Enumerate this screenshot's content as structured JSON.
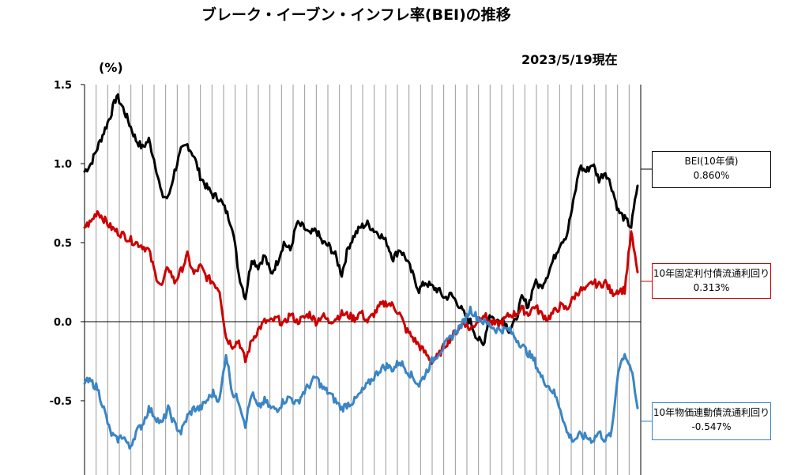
{
  "chart_data": {
    "type": "line",
    "title": "ブレーク・イーブン・インフレ率(BEI)の推移",
    "date_note": "2023/5/19現在",
    "ylabel": "(%)",
    "ylim": [
      -0.95,
      1.5
    ],
    "yticks": [
      1.5,
      1.0,
      0.5,
      0.0,
      -0.5
    ],
    "ytick_labels": [
      "1.5",
      "1.0",
      "0.5",
      "0.0",
      "-0.5"
    ],
    "grid": "vertical",
    "legend_placement": "right",
    "series": [
      {
        "name": "BEI(10年債)",
        "latest_label": "0.860%",
        "color": "#000000",
        "values": [
          0.95,
          1.0,
          1.1,
          1.2,
          1.3,
          1.43,
          1.35,
          1.25,
          1.15,
          1.1,
          1.15,
          1.0,
          0.8,
          0.78,
          0.95,
          1.08,
          1.12,
          1.05,
          0.92,
          0.85,
          0.8,
          0.78,
          0.7,
          0.6,
          0.3,
          0.15,
          0.4,
          0.35,
          0.42,
          0.3,
          0.38,
          0.5,
          0.45,
          0.62,
          0.6,
          0.55,
          0.58,
          0.5,
          0.48,
          0.42,
          0.3,
          0.47,
          0.55,
          0.6,
          0.62,
          0.58,
          0.55,
          0.5,
          0.4,
          0.46,
          0.4,
          0.3,
          0.2,
          0.25,
          0.22,
          0.2,
          0.15,
          0.17,
          0.12,
          0.05,
          0.0,
          -0.1,
          -0.15,
          0.05,
          0.0,
          0.02,
          -0.05,
          0.0,
          0.15,
          0.1,
          0.25,
          0.22,
          0.3,
          0.4,
          0.5,
          0.55,
          0.75,
          0.98,
          0.95,
          1.0,
          0.9,
          0.95,
          0.85,
          0.7,
          0.65,
          0.6,
          0.86
        ]
      },
      {
        "name": "10年固定利付債流通利回り",
        "latest_label": "0.313%",
        "color": "#cc0000",
        "values": [
          0.6,
          0.63,
          0.7,
          0.65,
          0.6,
          0.57,
          0.55,
          0.52,
          0.5,
          0.48,
          0.45,
          0.3,
          0.22,
          0.35,
          0.25,
          0.32,
          0.42,
          0.3,
          0.35,
          0.28,
          0.25,
          0.2,
          -0.1,
          -0.15,
          -0.12,
          -0.25,
          -0.12,
          -0.05,
          0.0,
          0.0,
          0.02,
          -0.02,
          0.05,
          0.0,
          0.02,
          0.05,
          0.0,
          0.04,
          0.0,
          0.02,
          0.05,
          0.04,
          0.02,
          0.06,
          0.0,
          0.05,
          0.1,
          0.12,
          0.1,
          0.05,
          -0.05,
          -0.1,
          -0.15,
          -0.2,
          -0.25,
          -0.22,
          -0.15,
          -0.1,
          -0.05,
          0.0,
          -0.05,
          0.0,
          0.05,
          0.0,
          -0.02,
          0.0,
          0.04,
          0.05,
          0.08,
          0.05,
          0.1,
          0.05,
          0.02,
          0.06,
          0.1,
          0.08,
          0.15,
          0.2,
          0.2,
          0.25,
          0.23,
          0.25,
          0.18,
          0.2,
          0.2,
          0.56,
          0.313
        ]
      },
      {
        "name": "10年物価連動債流通利回り",
        "latest_label": "-0.547%",
        "color": "#3a85c5",
        "values": [
          -0.38,
          -0.38,
          -0.42,
          -0.55,
          -0.7,
          -0.75,
          -0.72,
          -0.8,
          -0.7,
          -0.65,
          -0.55,
          -0.6,
          -0.65,
          -0.55,
          -0.65,
          -0.7,
          -0.6,
          -0.55,
          -0.55,
          -0.5,
          -0.45,
          -0.5,
          -0.2,
          -0.45,
          -0.5,
          -0.65,
          -0.45,
          -0.55,
          -0.5,
          -0.55,
          -0.55,
          -0.5,
          -0.48,
          -0.52,
          -0.45,
          -0.4,
          -0.35,
          -0.42,
          -0.45,
          -0.5,
          -0.55,
          -0.52,
          -0.5,
          -0.45,
          -0.4,
          -0.35,
          -0.3,
          -0.28,
          -0.3,
          -0.25,
          -0.3,
          -0.35,
          -0.4,
          -0.33,
          -0.25,
          -0.2,
          -0.15,
          -0.1,
          -0.05,
          0.0,
          0.08,
          0.03,
          0.0,
          -0.02,
          -0.05,
          -0.05,
          -0.05,
          -0.1,
          -0.15,
          -0.2,
          -0.25,
          -0.35,
          -0.4,
          -0.45,
          -0.55,
          -0.7,
          -0.75,
          -0.72,
          -0.73,
          -0.75,
          -0.7,
          -0.75,
          -0.7,
          -0.3,
          -0.2,
          -0.3,
          -0.547
        ]
      }
    ]
  }
}
